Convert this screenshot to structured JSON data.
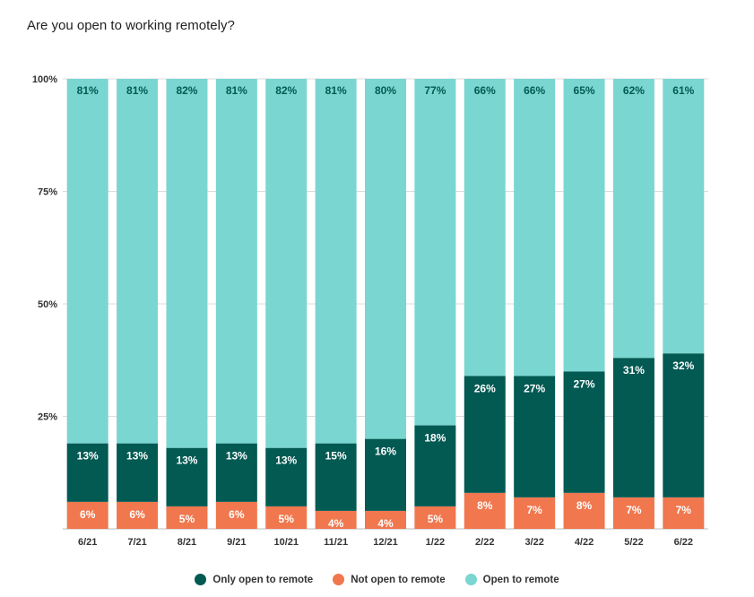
{
  "chart_data": {
    "type": "bar",
    "stacked": true,
    "title": "Are you open to working remotely?",
    "categories": [
      "6/21",
      "7/21",
      "8/21",
      "9/21",
      "10/21",
      "11/21",
      "12/21",
      "1/22",
      "2/22",
      "3/22",
      "4/22",
      "5/22",
      "6/22"
    ],
    "series": [
      {
        "name": "Not open to remote",
        "color": "#f0774e",
        "label_color": "#ffffff",
        "values": [
          6,
          6,
          5,
          6,
          5,
          4,
          4,
          5,
          8,
          7,
          8,
          7,
          7
        ]
      },
      {
        "name": "Only open to remote",
        "color": "#025a53",
        "label_color": "#ffffff",
        "values": [
          13,
          13,
          13,
          13,
          13,
          15,
          16,
          18,
          26,
          27,
          27,
          31,
          32
        ]
      },
      {
        "name": "Open to remote",
        "color": "#7ad6d1",
        "label_color": "#025a53",
        "values": [
          81,
          81,
          82,
          81,
          82,
          81,
          80,
          77,
          66,
          66,
          65,
          62,
          61
        ]
      }
    ],
    "legend_order": [
      "Only open to remote",
      "Not open to remote",
      "Open to remote"
    ],
    "yticks": [
      "100%",
      "75%",
      "50%",
      "25%"
    ],
    "ytick_values": [
      100,
      75,
      50,
      25
    ],
    "ylim": [
      0,
      100
    ],
    "legend_position": "bottom",
    "grid": true
  }
}
